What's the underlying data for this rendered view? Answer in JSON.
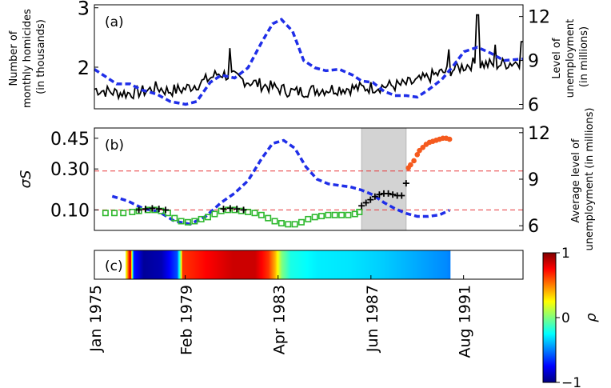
{
  "chart_data": [
    {
      "type": "line",
      "panel_label": "(a)",
      "ylabel_left": [
        "Number of",
        "monthly  homicides",
        "(in thousands)"
      ],
      "ylabel_right": [
        "Level of",
        "unemployment",
        "(in millions)"
      ],
      "ylim_left": [
        1.3,
        3.05
      ],
      "ylim_right": [
        5.7,
        12.8
      ],
      "yticks_left": [
        {
          "value": 2,
          "label": "2"
        },
        {
          "value": 3,
          "label": "3"
        }
      ],
      "yticks_right": [
        {
          "value": 6,
          "label": "6"
        },
        {
          "value": 9,
          "label": "9"
        },
        {
          "value": 12,
          "label": "12"
        }
      ],
      "xlim": [
        1975.0,
        1994.25
      ],
      "colors": {
        "homicides": "#000000",
        "unemployment": "#1f2ee8"
      },
      "homicides_anchors": [
        [
          1975.0,
          1.63
        ],
        [
          1975.8,
          1.58
        ],
        [
          1976.5,
          1.56
        ],
        [
          1977.3,
          1.6
        ],
        [
          1977.8,
          1.66
        ],
        [
          1978.3,
          1.6
        ],
        [
          1979.0,
          1.63
        ],
        [
          1979.8,
          1.74
        ],
        [
          1980.6,
          1.9
        ],
        [
          1981.2,
          1.84
        ],
        [
          1982.0,
          1.75
        ],
        [
          1983.0,
          1.66
        ],
        [
          1984.0,
          1.58
        ],
        [
          1985.0,
          1.62
        ],
        [
          1986.0,
          1.64
        ],
        [
          1987.0,
          1.65
        ],
        [
          1988.0,
          1.68
        ],
        [
          1988.8,
          1.7
        ],
        [
          1989.5,
          1.76
        ],
        [
          1990.2,
          1.86
        ],
        [
          1991.0,
          1.95
        ],
        [
          1992.0,
          2.06
        ],
        [
          1993.0,
          2.04
        ],
        [
          1994.25,
          2.1
        ]
      ],
      "homicides_spikes": [
        [
          1981.1,
          2.32
        ],
        [
          1992.2,
          2.88
        ],
        [
          1994.2,
          2.43
        ],
        [
          1990.9,
          2.3
        ],
        [
          1993.0,
          2.38
        ]
      ],
      "unemployment": [
        [
          1975.0,
          8.4
        ],
        [
          1975.5,
          7.9
        ],
        [
          1976.0,
          7.4
        ],
        [
          1976.6,
          7.4
        ],
        [
          1977.1,
          7.0
        ],
        [
          1977.8,
          6.7
        ],
        [
          1978.4,
          6.2
        ],
        [
          1979.1,
          6.0
        ],
        [
          1979.6,
          6.2
        ],
        [
          1980.2,
          7.5
        ],
        [
          1980.7,
          8.0
        ],
        [
          1981.3,
          7.8
        ],
        [
          1981.9,
          8.5
        ],
        [
          1982.5,
          10.2
        ],
        [
          1983.0,
          11.5
        ],
        [
          1983.4,
          11.8
        ],
        [
          1983.9,
          11.0
        ],
        [
          1984.4,
          9.0
        ],
        [
          1984.9,
          8.5
        ],
        [
          1985.4,
          8.3
        ],
        [
          1986.0,
          8.4
        ],
        [
          1986.6,
          8.0
        ],
        [
          1987.0,
          7.6
        ],
        [
          1987.5,
          7.5
        ],
        [
          1988.0,
          6.9
        ],
        [
          1988.5,
          6.6
        ],
        [
          1989.0,
          6.6
        ],
        [
          1989.5,
          6.5
        ],
        [
          1990.0,
          7.0
        ],
        [
          1990.6,
          7.7
        ],
        [
          1991.1,
          8.6
        ],
        [
          1991.6,
          9.6
        ],
        [
          1992.2,
          9.9
        ],
        [
          1992.8,
          9.5
        ],
        [
          1993.4,
          9.0
        ],
        [
          1994.25,
          9.1
        ]
      ]
    },
    {
      "type": "scatter",
      "panel_label": "(b)",
      "ylabel_left": "σS",
      "ylabel_right": [
        "Average level of",
        "unemployment (in millions)"
      ],
      "ylim_left": [
        0.0,
        0.5
      ],
      "ylim_right": [
        5.7,
        12.3
      ],
      "yticks_left": [
        {
          "value": 0.1,
          "label": "0.10"
        },
        {
          "value": 0.3,
          "label": "0.30"
        },
        {
          "value": 0.45,
          "label": "0.45"
        }
      ],
      "yticks_right": [
        {
          "value": 6,
          "label": "6"
        },
        {
          "value": 9,
          "label": "9"
        },
        {
          "value": 12,
          "label": "12"
        }
      ],
      "xlim": [
        1975.0,
        1994.25
      ],
      "shaded_region": [
        1987.0,
        1989.0
      ],
      "thresholds": [
        0.1,
        0.29
      ],
      "colors": {
        "green": "#2db82d",
        "black": "#000000",
        "orange": "#f55a1e",
        "blue": "#1f2ee8",
        "threshold": "#e8383b",
        "shade": "#d3d3d3"
      },
      "sigma_green": [
        [
          1975.5,
          0.085
        ],
        [
          1975.9,
          0.085
        ],
        [
          1976.3,
          0.085
        ],
        [
          1976.7,
          0.09
        ],
        [
          1977.0,
          0.095
        ],
        [
          1977.4,
          0.1
        ],
        [
          1977.7,
          0.1
        ],
        [
          1978.0,
          0.095
        ],
        [
          1978.3,
          0.085
        ],
        [
          1978.6,
          0.06
        ],
        [
          1978.9,
          0.045
        ],
        [
          1979.2,
          0.04
        ],
        [
          1979.5,
          0.045
        ],
        [
          1979.8,
          0.055
        ],
        [
          1980.1,
          0.065
        ],
        [
          1980.4,
          0.08
        ],
        [
          1980.7,
          0.095
        ],
        [
          1981.0,
          0.1
        ],
        [
          1981.3,
          0.1
        ],
        [
          1981.6,
          0.095
        ],
        [
          1981.9,
          0.09
        ],
        [
          1982.2,
          0.085
        ],
        [
          1982.5,
          0.075
        ],
        [
          1982.8,
          0.06
        ],
        [
          1983.1,
          0.045
        ],
        [
          1983.4,
          0.035
        ],
        [
          1983.7,
          0.03
        ],
        [
          1984.0,
          0.03
        ],
        [
          1984.3,
          0.04
        ],
        [
          1984.6,
          0.055
        ],
        [
          1984.9,
          0.065
        ],
        [
          1985.2,
          0.07
        ],
        [
          1985.5,
          0.075
        ],
        [
          1985.8,
          0.075
        ],
        [
          1986.1,
          0.075
        ],
        [
          1986.4,
          0.075
        ],
        [
          1986.7,
          0.08
        ],
        [
          1986.9,
          0.09
        ]
      ],
      "sigma_black": [
        [
          1977.0,
          0.1
        ],
        [
          1977.3,
          0.105
        ],
        [
          1977.6,
          0.108
        ],
        [
          1977.9,
          0.105
        ],
        [
          1978.2,
          0.1
        ],
        [
          1980.8,
          0.105
        ],
        [
          1981.1,
          0.108
        ],
        [
          1981.4,
          0.105
        ],
        [
          1981.7,
          0.1
        ],
        [
          1987.0,
          0.12
        ],
        [
          1987.2,
          0.135
        ],
        [
          1987.4,
          0.15
        ],
        [
          1987.6,
          0.165
        ],
        [
          1987.8,
          0.175
        ],
        [
          1988.0,
          0.18
        ],
        [
          1988.2,
          0.18
        ],
        [
          1988.4,
          0.175
        ],
        [
          1988.6,
          0.17
        ],
        [
          1988.8,
          0.17
        ],
        [
          1989.0,
          0.23
        ]
      ],
      "sigma_orange": [
        [
          1989.1,
          0.305
        ],
        [
          1989.2,
          0.32
        ],
        [
          1989.35,
          0.34
        ],
        [
          1989.5,
          0.37
        ],
        [
          1989.6,
          0.39
        ],
        [
          1989.75,
          0.405
        ],
        [
          1989.9,
          0.42
        ],
        [
          1990.05,
          0.43
        ],
        [
          1990.2,
          0.435
        ],
        [
          1990.35,
          0.44
        ],
        [
          1990.5,
          0.445
        ],
        [
          1990.65,
          0.45
        ],
        [
          1990.8,
          0.45
        ],
        [
          1990.95,
          0.445
        ]
      ],
      "avg_unemployment": [
        [
          1975.8,
          7.9
        ],
        [
          1976.5,
          7.6
        ],
        [
          1977.2,
          7.1
        ],
        [
          1977.9,
          6.9
        ],
        [
          1978.6,
          6.3
        ],
        [
          1979.3,
          6.1
        ],
        [
          1980.0,
          6.6
        ],
        [
          1980.7,
          7.5
        ],
        [
          1981.3,
          8.1
        ],
        [
          1981.9,
          8.9
        ],
        [
          1982.5,
          10.3
        ],
        [
          1983.0,
          11.3
        ],
        [
          1983.5,
          11.5
        ],
        [
          1984.0,
          11.0
        ],
        [
          1984.5,
          9.8
        ],
        [
          1985.0,
          9.0
        ],
        [
          1985.5,
          8.7
        ],
        [
          1986.0,
          8.6
        ],
        [
          1986.5,
          8.5
        ],
        [
          1987.0,
          8.3
        ],
        [
          1987.5,
          8.0
        ],
        [
          1988.0,
          7.5
        ],
        [
          1988.5,
          7.1
        ],
        [
          1989.0,
          6.8
        ],
        [
          1989.5,
          6.6
        ],
        [
          1990.0,
          6.6
        ],
        [
          1990.5,
          6.7
        ],
        [
          1990.95,
          7.0
        ]
      ]
    },
    {
      "type": "heatmap",
      "panel_label": "(c)",
      "colorbar_label": "ρ",
      "colorbar_ticks": [
        {
          "value": 1,
          "label": "1"
        },
        {
          "value": 0,
          "label": "0"
        },
        {
          "value": -1,
          "label": "−1"
        }
      ],
      "xlim": [
        1975.0,
        1994.25
      ],
      "rho": [
        [
          1976.4,
          0.2
        ],
        [
          1976.6,
          0.9
        ],
        [
          1976.75,
          -0.7
        ],
        [
          1977.2,
          -0.95
        ],
        [
          1978.0,
          -0.9
        ],
        [
          1978.7,
          -0.6
        ],
        [
          1978.85,
          0.0
        ],
        [
          1978.95,
          0.65
        ],
        [
          1979.5,
          0.7
        ],
        [
          1980.0,
          0.75
        ],
        [
          1981.2,
          0.85
        ],
        [
          1982.2,
          0.85
        ],
        [
          1982.8,
          0.65
        ],
        [
          1983.1,
          0.4
        ],
        [
          1983.4,
          0.0
        ],
        [
          1983.8,
          -0.2
        ],
        [
          1985.0,
          -0.28
        ],
        [
          1986.5,
          -0.3
        ],
        [
          1988.0,
          -0.35
        ],
        [
          1989.5,
          -0.42
        ],
        [
          1990.8,
          -0.48
        ],
        [
          1990.95,
          -0.5
        ]
      ]
    }
  ],
  "x_axis": {
    "ticks": [
      {
        "value": 1975.0,
        "label": "Jan 1975"
      },
      {
        "value": 1979.08,
        "label": "Feb 1979"
      },
      {
        "value": 1983.25,
        "label": "Apr 1983"
      },
      {
        "value": 1987.42,
        "label": "Jun 1987"
      },
      {
        "value": 1991.58,
        "label": "Aug 1991"
      }
    ]
  }
}
